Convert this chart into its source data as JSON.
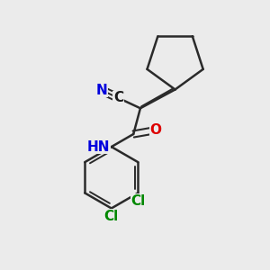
{
  "bg_color": "#ebebeb",
  "bond_color": "#2a2a2a",
  "bond_lw": 1.8,
  "atom_colors": {
    "N": "#0000dd",
    "O": "#dd0000",
    "Cl": "#008800",
    "C": "#1a1a1a",
    "N_cyano": "#0000dd"
  },
  "font_size_atom": 11,
  "font_size_H": 9
}
